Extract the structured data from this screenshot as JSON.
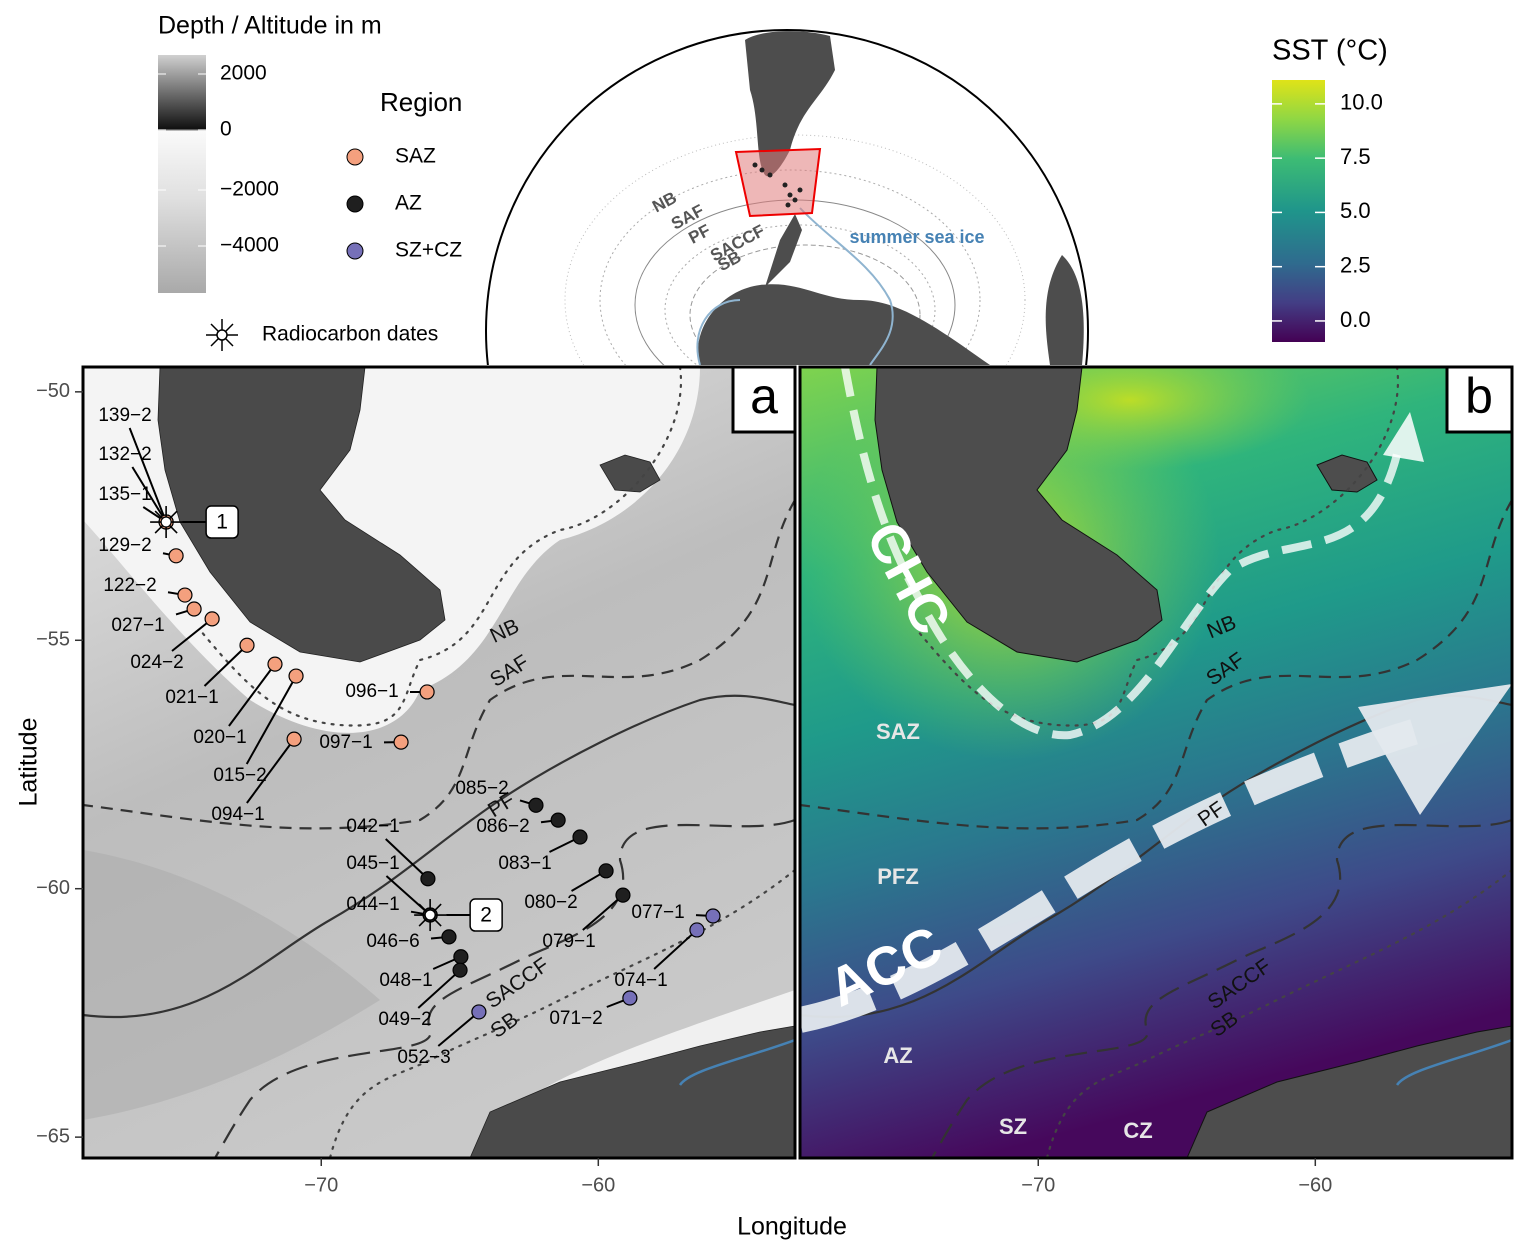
{
  "depth_legend": {
    "title": "Depth / Altitude in m",
    "ticks": [
      2000,
      0,
      {
        "value": -2000,
        "label": "−2000"
      },
      {
        "value": -4000,
        "label": "−4000"
      }
    ]
  },
  "region_legend": {
    "title": "Region",
    "items": [
      {
        "name": "SAZ",
        "color": "#f4a07e"
      },
      {
        "name": "AZ",
        "color": "#1f1f1f"
      },
      {
        "name": "SZ+CZ",
        "color": "#7670b8"
      }
    ]
  },
  "radiocarbon_legend": "Radiocarbon dates",
  "sst_legend": {
    "title": "SST (°C)",
    "lim": [
      -0.97,
      11.1
    ],
    "ticks": [
      {
        "value": 10,
        "label": "10.0"
      },
      {
        "value": 7.5,
        "label": "7.5"
      },
      {
        "value": 5,
        "label": "5.0"
      },
      {
        "value": 2.5,
        "label": "2.5"
      },
      {
        "value": 0,
        "label": "0.0"
      }
    ]
  },
  "inset": {
    "fronts": [
      "NB",
      "SAF",
      "PF",
      "SACCF",
      "SB"
    ],
    "sea_ice_label": "summer sea ice"
  },
  "axes": {
    "x_title": "Longitude",
    "y_title": "Latitude"
  },
  "map_a": {
    "panel_label": "a",
    "xlim": [
      -78.6,
      -52.9
    ],
    "ylim": [
      -65.42,
      -49.5
    ],
    "xticks": [
      {
        "value": -70,
        "label": "−70"
      },
      {
        "value": -60,
        "label": "−60"
      }
    ],
    "yticks": [
      {
        "value": -50,
        "label": "−50"
      },
      {
        "value": -55,
        "label": "−55"
      },
      {
        "value": -60,
        "label": "−60"
      },
      {
        "value": -65,
        "label": "−65"
      }
    ],
    "fronts": [
      "NB",
      "SAF",
      "PF",
      "SACCF",
      "SB"
    ],
    "stations": [
      {
        "label": "139−2",
        "lon": -75.6,
        "lat": -52.62,
        "region": 0
      },
      {
        "label": "132−2",
        "lon": -75.6,
        "lat": -52.62,
        "region": 0
      },
      {
        "label": "135−1",
        "lon": -75.6,
        "lat": -52.62,
        "region": 0
      },
      {
        "label": "129−2",
        "lon": -75.24,
        "lat": -53.3,
        "region": 0
      },
      {
        "label": "122−2",
        "lon": -74.92,
        "lat": -54.09,
        "region": 0
      },
      {
        "label": "027−1",
        "lon": -74.59,
        "lat": -54.37,
        "region": 0
      },
      {
        "label": "024−2",
        "lon": -73.94,
        "lat": -54.57,
        "region": 0
      },
      {
        "label": "021−1",
        "lon": -72.68,
        "lat": -55.1,
        "region": 0
      },
      {
        "label": "020−1",
        "lon": -71.67,
        "lat": -55.48,
        "region": 0
      },
      {
        "label": "015−2",
        "lon": -70.91,
        "lat": -55.72,
        "region": 0
      },
      {
        "label": "094−1",
        "lon": -70.98,
        "lat": -56.99,
        "region": 0
      },
      {
        "label": "096−1",
        "lon": -66.18,
        "lat": -56.04,
        "region": 0
      },
      {
        "label": "097−1",
        "lon": -67.12,
        "lat": -57.05,
        "region": 0
      },
      {
        "label": "085−2",
        "lon": -62.25,
        "lat": -58.32,
        "region": 1
      },
      {
        "label": "086−2",
        "lon": -61.45,
        "lat": -58.62,
        "region": 1
      },
      {
        "label": "083−1",
        "lon": -60.66,
        "lat": -58.96,
        "region": 1
      },
      {
        "label": "080−2",
        "lon": -59.72,
        "lat": -59.64,
        "region": 1
      },
      {
        "label": "079−1",
        "lon": -59.11,
        "lat": -60.13,
        "region": 1
      },
      {
        "label": "077−1",
        "lon": -55.86,
        "lat": -60.55,
        "region": 2
      },
      {
        "label": "074−1",
        "lon": -56.44,
        "lat": -60.83,
        "region": 2
      },
      {
        "label": "071−2",
        "lon": -58.86,
        "lat": -62.2,
        "region": 2
      },
      {
        "label": "042−1",
        "lon": -66.15,
        "lat": -59.8,
        "region": 1
      },
      {
        "label": "045−1",
        "lon": -66.07,
        "lat": -60.53,
        "region": 1
      },
      {
        "label": "044−1",
        "lon": -66.07,
        "lat": -60.53,
        "region": 1
      },
      {
        "label": "046−6",
        "lon": -65.39,
        "lat": -60.97,
        "region": 1
      },
      {
        "label": "048−1",
        "lon": -64.96,
        "lat": -61.37,
        "region": 1
      },
      {
        "label": "049−2",
        "lon": -64.99,
        "lat": -61.64,
        "region": 1
      },
      {
        "label": "052−3",
        "lon": -64.31,
        "lat": -62.48,
        "region": 2
      }
    ],
    "radiocarbon_sites": [
      {
        "label": "1",
        "lon": -75.6,
        "lat": -52.62
      },
      {
        "label": "2",
        "lon": -66.07,
        "lat": -60.53
      }
    ]
  },
  "map_b": {
    "panel_label": "b",
    "xlim": [
      -78.6,
      -52.9
    ],
    "xticks": [
      {
        "value": -70,
        "label": "−70"
      },
      {
        "value": -60,
        "label": "−60"
      }
    ],
    "currents": [
      "CHC",
      "ACC"
    ],
    "fronts": [
      "NB",
      "SAF",
      "PF",
      "SACCF",
      "SB"
    ],
    "zones": [
      "SAZ",
      "PFZ",
      "AZ",
      "SZ",
      "CZ"
    ]
  }
}
